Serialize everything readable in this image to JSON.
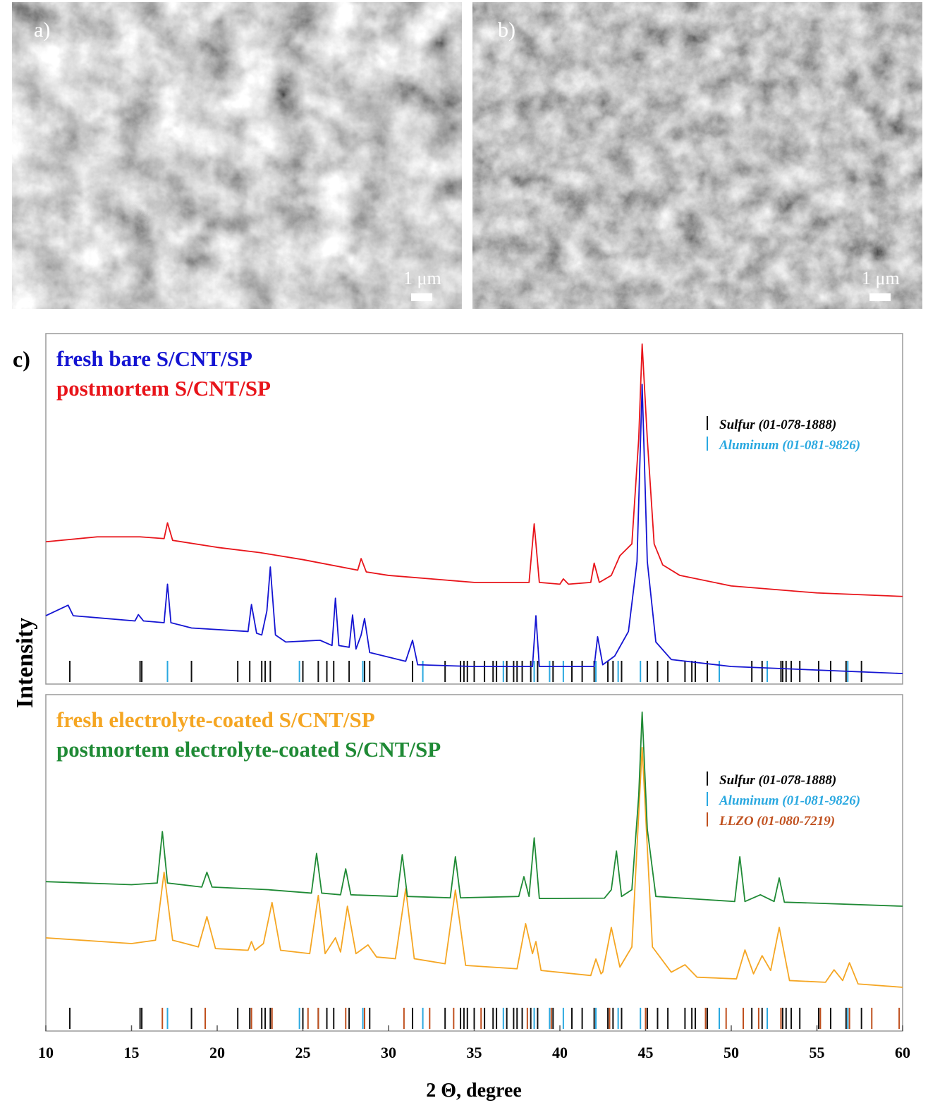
{
  "images": [
    {
      "label": "a)",
      "scale_bar": "1 μm"
    },
    {
      "label": "b)",
      "scale_bar": "1 μm"
    }
  ],
  "panel_label": "c)",
  "chart_data": [
    {
      "type": "line",
      "ylabel": "Intensity",
      "xlim": [
        10,
        60
      ],
      "ylim": [
        0,
        100
      ],
      "series": [
        {
          "name": "fresh bare S/CNT/SP",
          "color": "#1414d2",
          "x": [
            10,
            11.3,
            11.6,
            15.2,
            15.4,
            15.7,
            16.9,
            17.1,
            17.3,
            18.5,
            21.8,
            22,
            22.3,
            22.6,
            22.9,
            23.1,
            23.4,
            24,
            26,
            26.7,
            26.9,
            27.1,
            27.7,
            27.9,
            28.1,
            28.4,
            28.6,
            28.9,
            31,
            31.4,
            31.7,
            35,
            38.4,
            38.6,
            38.8,
            42,
            42.2,
            42.5,
            43.2,
            44,
            44.5,
            44.8,
            45.1,
            45.6,
            46.5,
            50,
            55,
            60
          ],
          "values": [
            19.5,
            22.5,
            19.5,
            18,
            19.8,
            18,
            17.5,
            28.5,
            17.5,
            16,
            15,
            22.7,
            14.5,
            14,
            20.9,
            33.4,
            14,
            12,
            12.5,
            11,
            24.5,
            11,
            10.5,
            19.7,
            10,
            14,
            18.7,
            9,
            6.5,
            12.5,
            5.5,
            5,
            5,
            19.5,
            5,
            5,
            13.5,
            5.5,
            8,
            15,
            35,
            85.5,
            35,
            12,
            7,
            5,
            4,
            3
          ]
        },
        {
          "name": "postmortem S/CNT/SP",
          "color": "#e8141a",
          "x": [
            10,
            13,
            15.5,
            16.9,
            17.1,
            17.4,
            20,
            22.5,
            25,
            28.2,
            28.4,
            28.7,
            30,
            35,
            38.2,
            38.5,
            38.8,
            40,
            40.2,
            40.5,
            41.8,
            42,
            42.3,
            43,
            43.5,
            44.2,
            44.6,
            44.8,
            45.1,
            45.5,
            46,
            47,
            50,
            55,
            60
          ],
          "values": [
            40.6,
            42,
            42,
            41.5,
            46,
            41,
            39,
            37.5,
            35.5,
            32.5,
            35.8,
            32,
            31,
            29,
            29,
            45.7,
            29,
            28.5,
            30,
            28.5,
            29,
            34.5,
            29,
            31,
            36.6,
            40,
            70,
            97,
            70,
            40,
            34,
            31,
            28,
            26,
            25
          ]
        }
      ],
      "reference_patterns": [
        {
          "name": "Sulfur (01-078-1888)",
          "color": "#111111",
          "positions": [
            11.4,
            15.5,
            15.6,
            18.5,
            21.2,
            21.9,
            22.6,
            22.8,
            23.1,
            25.0,
            25.9,
            26.4,
            26.8,
            27.7,
            28.6,
            28.9,
            31.4,
            33.3,
            34.2,
            34.4,
            34.6,
            35.0,
            35.6,
            36.1,
            36.3,
            36.9,
            37.3,
            37.5,
            37.8,
            38.3,
            38.7,
            39.6,
            40.7,
            41.3,
            42.0,
            42.8,
            43.1,
            43.6,
            45.1,
            45.7,
            46.3,
            47.3,
            47.7,
            47.9,
            48.6,
            51.2,
            51.8,
            52.9,
            53.0,
            53.2,
            53.5,
            54.0,
            55.1,
            55.8,
            56.7,
            57.6
          ]
        },
        {
          "name": "Aluminum (01-081-9826)",
          "color": "#29a8e0",
          "positions": [
            17.1,
            24.8,
            28.5,
            32.0,
            36.7,
            38.5,
            39.4,
            40.2,
            42.1,
            43.4,
            44.7,
            49.3,
            52.1,
            56.8
          ]
        }
      ]
    },
    {
      "type": "line",
      "xlabel": "2 Θ, degree",
      "xlim": [
        10,
        60
      ],
      "ylim": [
        0,
        100
      ],
      "xticks": [
        10,
        15,
        20,
        25,
        30,
        35,
        40,
        45,
        50,
        55,
        60
      ],
      "series": [
        {
          "name": "fresh electrolyte-coated S/CNT/SP",
          "color": "#f5a623",
          "x": [
            10,
            15,
            16.4,
            16.9,
            17.4,
            18.9,
            19.4,
            19.9,
            21.8,
            22,
            22.2,
            22.7,
            23.2,
            23.7,
            25.4,
            25.9,
            26.3,
            26.9,
            27.2,
            27.6,
            28.1,
            28.8,
            29.3,
            30.4,
            31,
            31.5,
            33.3,
            33.9,
            34.5,
            37.5,
            38,
            38.4,
            38.6,
            38.9,
            41.8,
            42.1,
            42.4,
            42.5,
            43,
            43.5,
            44.2,
            44.8,
            45.4,
            46.5,
            47.3,
            48,
            50.3,
            50.8,
            51.3,
            51.8,
            52.3,
            52.8,
            53.4,
            55.5,
            56,
            56.5,
            56.9,
            57.4,
            60
          ],
          "values": [
            27.7,
            26,
            27,
            47.2,
            27,
            25,
            34,
            24.5,
            24,
            26.6,
            24,
            26,
            38.2,
            24,
            23,
            40.3,
            23,
            27.7,
            23.5,
            37.1,
            23,
            25.6,
            22,
            21.5,
            42.3,
            21.5,
            20,
            41.9,
            19.5,
            18.5,
            31.9,
            23,
            26.6,
            18,
            16.5,
            21.4,
            17,
            17.5,
            30.8,
            19,
            25,
            84.3,
            25,
            17.5,
            19.7,
            16,
            15.5,
            24.1,
            17,
            22.4,
            18,
            30.8,
            15,
            14.5,
            18.2,
            15,
            20.3,
            14,
            13
          ]
        },
        {
          "name": "postmortem electrolyte-coated S/CNT/SP",
          "color": "#1f8a35",
          "x": [
            10,
            15,
            16.5,
            16.8,
            17.1,
            19.1,
            19.4,
            19.7,
            23,
            25.5,
            25.8,
            26.1,
            27.2,
            27.5,
            27.8,
            30.5,
            30.8,
            31.1,
            33.6,
            33.9,
            34.2,
            37.6,
            37.9,
            38.2,
            38.5,
            38.8,
            42.6,
            43,
            43.3,
            43.6,
            44.2,
            44.6,
            44.8,
            45.1,
            45.6,
            50.2,
            50.5,
            50.8,
            51.7,
            52.5,
            52.8,
            53.1,
            55,
            60
          ],
          "values": [
            44.4,
            43.5,
            44,
            59.3,
            44,
            42.8,
            47.2,
            42.8,
            42,
            41,
            52.8,
            41,
            40.5,
            48.2,
            40.5,
            40,
            52.4,
            40,
            39.6,
            51.8,
            39.6,
            40,
            45.9,
            40,
            57.4,
            39.4,
            39.5,
            42,
            53.5,
            40,
            42,
            70,
            94.8,
            60,
            40,
            38.5,
            51.8,
            38.5,
            40.5,
            38.5,
            45.5,
            38.3,
            38,
            37.1
          ]
        }
      ],
      "reference_patterns": [
        {
          "name": "Sulfur (01-078-1888)",
          "color": "#111111",
          "positions": [
            11.4,
            15.5,
            15.6,
            18.5,
            21.2,
            21.9,
            22.6,
            22.8,
            23.1,
            25.0,
            25.9,
            26.4,
            26.8,
            27.7,
            28.6,
            28.9,
            31.4,
            33.3,
            34.2,
            34.4,
            34.6,
            35.0,
            35.6,
            36.1,
            36.3,
            36.9,
            37.3,
            37.5,
            37.8,
            38.3,
            38.7,
            39.6,
            40.7,
            41.3,
            42.0,
            42.8,
            43.1,
            43.6,
            45.1,
            45.7,
            46.3,
            47.3,
            47.7,
            47.9,
            48.6,
            51.2,
            51.8,
            52.9,
            53.0,
            53.2,
            53.5,
            54.0,
            55.1,
            55.8,
            56.7,
            57.6
          ]
        },
        {
          "name": "Aluminum (01-081-9826)",
          "color": "#29a8e0",
          "positions": [
            17.1,
            24.8,
            28.5,
            32.0,
            36.7,
            38.5,
            39.4,
            40.2,
            42.1,
            43.4,
            44.7,
            49.3,
            52.1,
            56.8
          ]
        },
        {
          "name": "LLZO (01-080-7219)",
          "color": "#c0501e",
          "positions": [
            16.8,
            19.3,
            22.0,
            23.2,
            25.3,
            25.9,
            27.5,
            28.6,
            30.9,
            32.4,
            33.8,
            35.4,
            38.1,
            39.5,
            42.9,
            45.0,
            48.5,
            49.7,
            50.7,
            51.6,
            52.9,
            55.2,
            56.9,
            58.2,
            59.8
          ]
        }
      ]
    }
  ]
}
